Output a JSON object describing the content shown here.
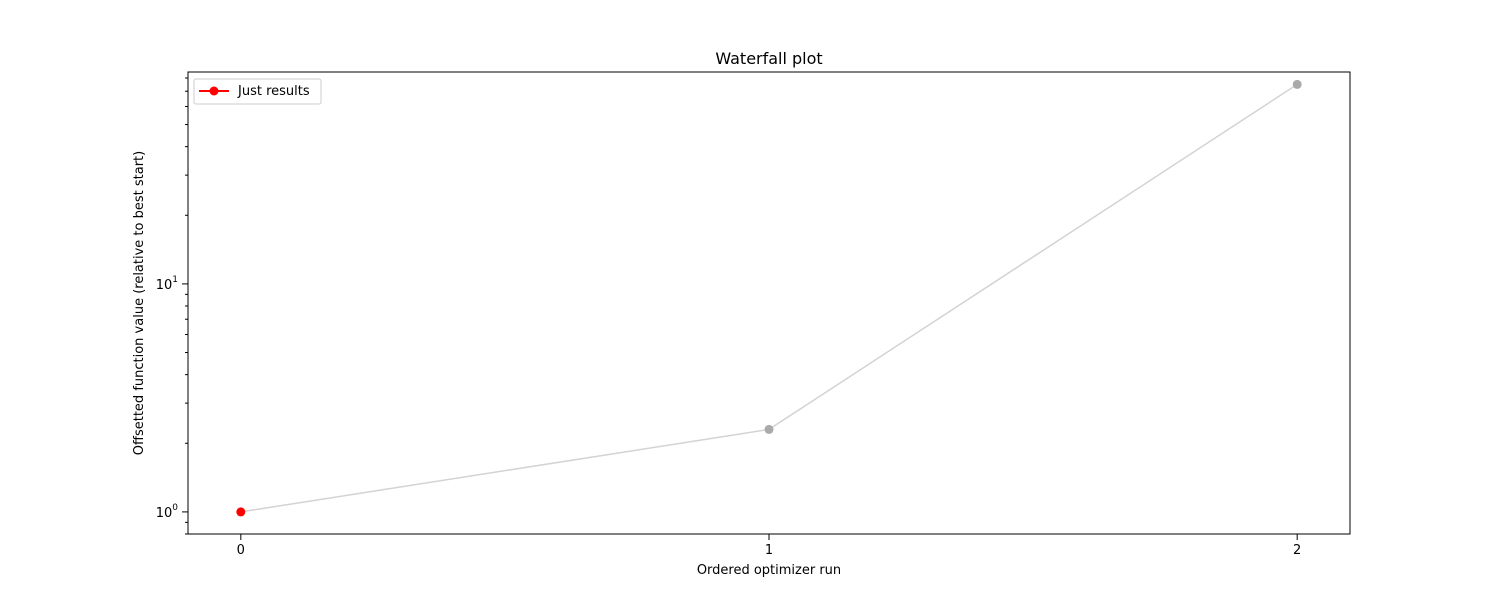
{
  "chart_data": {
    "type": "line",
    "title": "Waterfall plot",
    "xlabel": "Ordered optimizer run",
    "ylabel": "Offsetted function value (relative to best start)",
    "yscale": "log",
    "x": [
      0,
      1,
      2
    ],
    "xticks": [
      "0",
      "1",
      "2"
    ],
    "xlim": [
      -0.1,
      2.1
    ],
    "ylim": [
      0.8,
      85
    ],
    "series": [
      {
        "name": "Just results",
        "x": [
          0,
          1,
          2
        ],
        "values": [
          1.0,
          2.3,
          75
        ],
        "line_color": "#d3d3d3",
        "point_colors": [
          "#ff0000",
          "#aaaaaa",
          "#aaaaaa"
        ]
      }
    ],
    "legend": {
      "placement": "top-left",
      "color": "#ff0000"
    },
    "grid": false
  }
}
